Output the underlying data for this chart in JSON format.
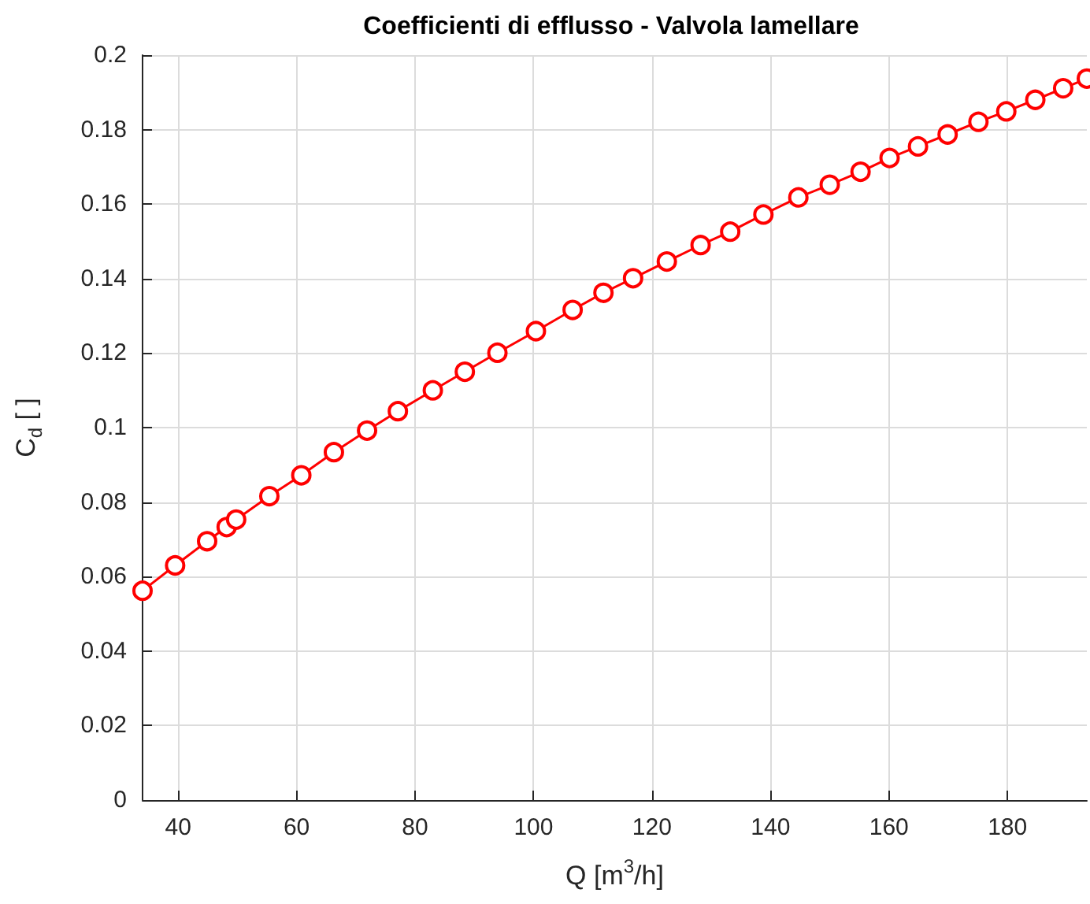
{
  "chart_data": {
    "type": "line",
    "title": "Coefficienti di efflusso - Valvola lamellare",
    "xlabel": "Q [m$^{3}$/h]",
    "ylabel": "C$_{d}$ [ ]",
    "x": [
      34,
      39.5,
      44.9,
      48.2,
      49.8,
      55.4,
      60.8,
      66.3,
      71.9,
      77.1,
      83,
      88.4,
      93.9,
      100.4,
      106.6,
      111.8,
      116.8,
      122.5,
      128.2,
      133.2,
      138.8,
      144.7,
      150,
      155.2,
      160.1,
      164.9,
      169.9,
      175.1,
      179.8,
      184.7,
      189.4,
      193.4
    ],
    "series": [
      {
        "color": "#ff0000",
        "values": [
          0.0562,
          0.063,
          0.0695,
          0.0733,
          0.0753,
          0.0816,
          0.0872,
          0.0934,
          0.0992,
          0.1044,
          0.11,
          0.115,
          0.1201,
          0.1259,
          0.1316,
          0.1362,
          0.1401,
          0.1446,
          0.149,
          0.1526,
          0.1572,
          0.1618,
          0.1652,
          0.1687,
          0.1724,
          0.1755,
          0.1787,
          0.1821,
          0.1849,
          0.188,
          0.1911,
          0.1937
        ]
      }
    ],
    "xlim": [
      34,
      193.4
    ],
    "xticks": [
      40,
      60,
      80,
      100,
      120,
      140,
      160,
      180
    ],
    "ylim": [
      0,
      0.2
    ],
    "yticks": [
      0,
      0.02,
      0.04,
      0.06,
      0.08,
      0.1,
      0.12,
      0.14,
      0.16,
      0.18,
      0.2
    ],
    "grid": true,
    "legend": false,
    "marker": "circle",
    "line_style": "solid"
  }
}
